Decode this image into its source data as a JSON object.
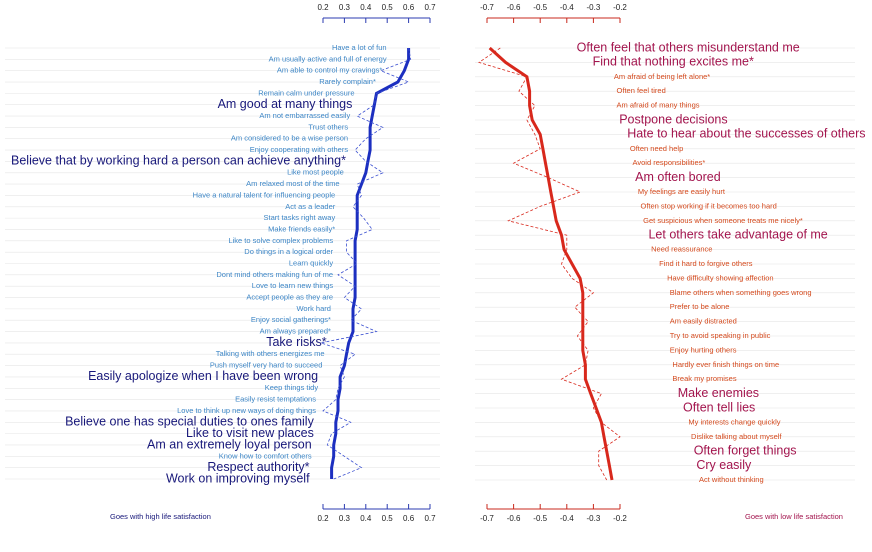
{
  "chart_data": [
    {
      "type": "line",
      "categories": [
        "Have a lot of fun",
        "Am usually active and full of energy",
        "Am able to control my cravings*",
        "Rarely complain*",
        "Remain calm under pressure",
        "Am good at many things",
        "Am not embarrassed easily",
        "Trust others",
        "Am considered to be a wise person",
        "Enjoy cooperating with others",
        "Believe that by working hard a person can achieve anything*",
        "Like most people",
        "Am relaxed most of the time",
        "Have a natural talent for influencing people",
        "Act as a leader",
        "Start tasks right away",
        "Make friends easily*",
        "Like to solve complex problems",
        "Do things in a logical order",
        "Learn quickly",
        "Dont mind others making fun of me",
        "Love to learn new things",
        "Accept people as they are",
        "Work hard",
        "Enjoy social gatherings*",
        "Am always prepared*",
        "Take risks*",
        "Talking with others energizes me",
        "Push myself very hard to succeed",
        "Easily apologize when I have been wrong",
        "Keep things tidy",
        "Easily resist temptations",
        "Love to think up new ways of doing things",
        "Believe one has special duties to ones family",
        "Like to visit new places",
        "Am an extremely loyal person",
        "Know how to comfort others",
        "Respect authority*",
        "Work on improving myself"
      ],
      "emphasized": [
        5,
        10,
        26,
        29,
        33,
        34,
        35,
        37,
        38
      ],
      "series": [
        {
          "color": "#1c2fc0",
          "style": "solid",
          "values": [
            0.6,
            0.6,
            0.58,
            0.55,
            0.45,
            0.44,
            0.43,
            0.42,
            0.42,
            0.42,
            0.41,
            0.4,
            0.38,
            0.36,
            0.36,
            0.36,
            0.36,
            0.35,
            0.35,
            0.35,
            0.35,
            0.35,
            0.35,
            0.34,
            0.34,
            0.34,
            0.32,
            0.31,
            0.3,
            0.28,
            0.28,
            0.27,
            0.27,
            0.26,
            0.26,
            0.25,
            0.25,
            0.24,
            0.24
          ]
        },
        {
          "color": "#3a4fd0",
          "style": "dashed",
          "values": [
            0.6,
            0.61,
            0.47,
            0.6,
            0.45,
            0.44,
            0.36,
            0.48,
            0.4,
            0.35,
            0.4,
            0.48,
            0.36,
            0.38,
            0.34,
            0.39,
            0.43,
            0.31,
            0.31,
            0.36,
            0.27,
            0.35,
            0.3,
            0.38,
            0.33,
            0.45,
            0.19,
            0.35,
            0.28,
            0.3,
            0.27,
            0.26,
            0.2,
            0.33,
            0.24,
            0.22,
            0.3,
            0.38,
            0.25
          ]
        }
      ],
      "xlim": [
        0.2,
        0.7
      ],
      "xticks": [
        0.2,
        0.3,
        0.4,
        0.5,
        0.6,
        0.7
      ],
      "axis_color": "#2b3bb0",
      "label_color": "#3d86c6",
      "emphasis_color": "#18187a",
      "note": "Goes with high life satisfaction"
    },
    {
      "type": "line",
      "categories": [
        "Often feel that others misunderstand me",
        "Find that nothing excites me*",
        "Am afraid of being left alone*",
        "Often feel tired",
        "Am afraid of many things",
        "Postpone decisions",
        "Hate to hear about the successes of others",
        "Often need help",
        "Avoid responsibilities*",
        "Am often bored",
        "My feelings are easily hurt",
        "Often stop working if it becomes too hard",
        "Get suspicious when someone treats me nicely*",
        "Let others take advantage of me",
        "Need reassurance",
        "Find it hard to forgive others",
        "Have difficulty showing affection",
        "Blame others when something goes wrong",
        "Prefer to be alone",
        "Am easily distracted",
        "Try to avoid speaking in public",
        "Enjoy hurting others",
        "Hardly ever finish things on time",
        "Break my promises",
        "Make enemies",
        "Often tell lies",
        "My interests change quickly",
        "Dislike talking about myself",
        "Often forget things",
        "Cry easily",
        "Act without thinking"
      ],
      "emphasized": [
        0,
        1,
        5,
        6,
        9,
        13,
        24,
        25,
        28,
        29
      ],
      "series": [
        {
          "color": "#d8281c",
          "style": "solid",
          "values": [
            -0.69,
            -0.63,
            -0.55,
            -0.54,
            -0.54,
            -0.53,
            -0.5,
            -0.49,
            -0.48,
            -0.47,
            -0.46,
            -0.45,
            -0.44,
            -0.42,
            -0.41,
            -0.38,
            -0.35,
            -0.34,
            -0.34,
            -0.34,
            -0.34,
            -0.34,
            -0.33,
            -0.33,
            -0.31,
            -0.29,
            -0.27,
            -0.26,
            -0.25,
            -0.24,
            -0.23
          ]
        },
        {
          "color": "#d8281c",
          "style": "dashed",
          "values": [
            -0.65,
            -0.73,
            -0.55,
            -0.58,
            -0.52,
            -0.55,
            -0.52,
            -0.5,
            -0.6,
            -0.47,
            -0.35,
            -0.5,
            -0.62,
            -0.4,
            -0.4,
            -0.42,
            -0.38,
            -0.3,
            -0.37,
            -0.32,
            -0.36,
            -0.32,
            -0.33,
            -0.42,
            -0.27,
            -0.3,
            -0.27,
            -0.2,
            -0.28,
            -0.28,
            -0.25
          ]
        }
      ],
      "xlim": [
        -0.7,
        -0.2
      ],
      "xticks": [
        -0.7,
        -0.6,
        -0.5,
        -0.4,
        -0.3,
        -0.2
      ],
      "axis_color": "#c8281c",
      "label_color": "#d44a1e",
      "emphasis_color": "#a3154e",
      "note": "Goes with low life satisfaction"
    }
  ]
}
